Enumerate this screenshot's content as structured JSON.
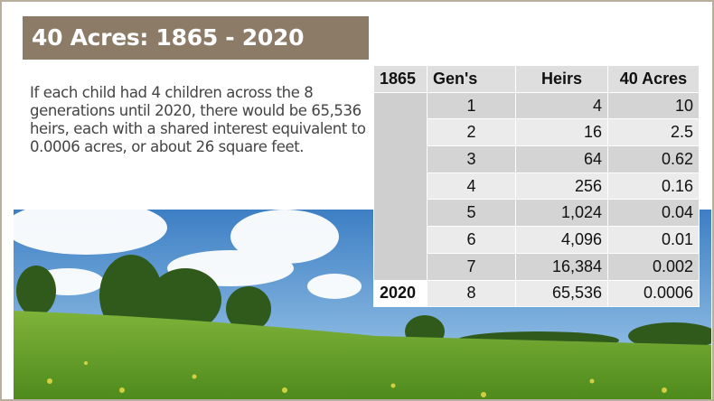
{
  "header": {
    "title": "40 Acres: 1865 - 2020"
  },
  "body": {
    "text": "If each child had 4 children across the 8 generations until 2020, there would be 65,536 heirs, each with a shared interest equivalent to 0.0006 acres, or about 26 square feet."
  },
  "table": {
    "header": [
      "1865",
      "Gen's",
      "Heirs",
      "40 Acres"
    ],
    "end_year": "2020",
    "rows": [
      [
        "1",
        "4",
        "10"
      ],
      [
        "2",
        "16",
        "2.5"
      ],
      [
        "3",
        "64",
        "0.62"
      ],
      [
        "4",
        "256",
        "0.16"
      ],
      [
        "5",
        "1,024",
        "0.04"
      ],
      [
        "6",
        "4,096",
        "0.01"
      ],
      [
        "7",
        "16,384",
        "0.002"
      ],
      [
        "8",
        "65,536",
        "0.0006"
      ]
    ]
  }
}
